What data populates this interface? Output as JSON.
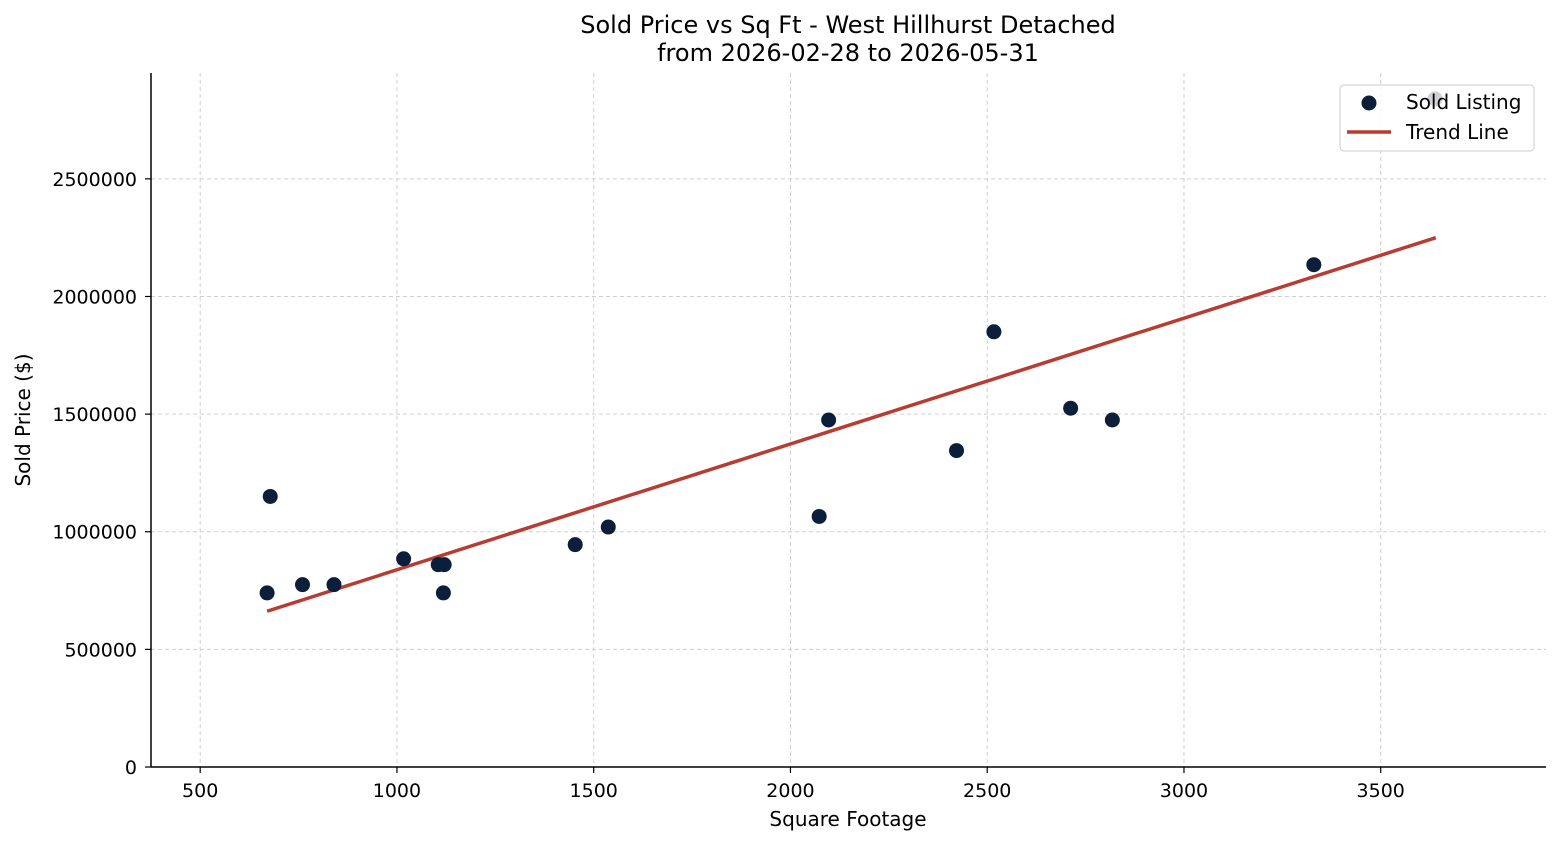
{
  "chart_data": {
    "type": "scatter",
    "title": [
      "Sold Price vs Sq Ft - West Hillhurst Detached",
      "from 2026-02-28 to 2026-05-31"
    ],
    "xlabel": "Square Footage",
    "ylabel": "Sold Price ($)",
    "xlim": [
      375,
      3920
    ],
    "ylim": [
      0,
      2950000
    ],
    "xticks": [
      500,
      1000,
      1500,
      2000,
      2500,
      3000,
      3500
    ],
    "yticks": [
      0,
      500000,
      1000000,
      1500000,
      2000000,
      2500000
    ],
    "grid": true,
    "legend_position": "top-right",
    "series": [
      {
        "name": "Sold Listing",
        "kind": "scatter",
        "color": "#0b1f3a",
        "points": [
          [
            670,
            740000
          ],
          [
            678,
            1150000
          ],
          [
            760,
            775000
          ],
          [
            840,
            775000
          ],
          [
            1017,
            885000
          ],
          [
            1105,
            860000
          ],
          [
            1120,
            860000
          ],
          [
            1118,
            740000
          ],
          [
            1453,
            945000
          ],
          [
            1537,
            1020000
          ],
          [
            2073,
            1065000
          ],
          [
            2097,
            1475000
          ],
          [
            2422,
            1345000
          ],
          [
            2517,
            1850000
          ],
          [
            2712,
            1525000
          ],
          [
            2818,
            1475000
          ],
          [
            3330,
            2135000
          ],
          [
            3638,
            2840000
          ]
        ]
      },
      {
        "name": "Trend Line",
        "kind": "line",
        "color": "#b73c31",
        "points": [
          [
            670,
            662000
          ],
          [
            3640,
            2250000
          ]
        ]
      }
    ]
  }
}
